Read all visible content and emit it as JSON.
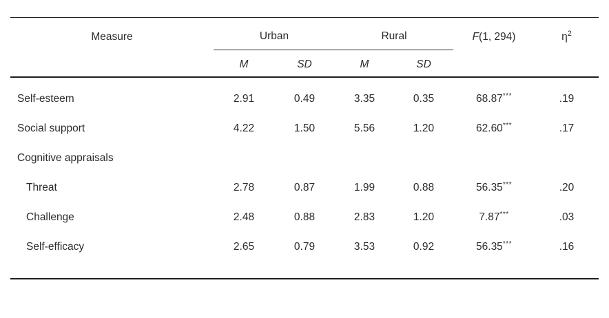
{
  "colors": {
    "text": "#2b2b2b",
    "rule": "#1f1f1f",
    "background": "#ffffff"
  },
  "table": {
    "header": {
      "measure": "Measure",
      "urban": "Urban",
      "rural": "Rural",
      "f_italic": "F",
      "f_rest": "(1, 294)",
      "eta": "η",
      "eta_sup": "2",
      "m": "M",
      "sd": "SD"
    },
    "rows": [
      {
        "label": "Self-esteem",
        "indent": false,
        "urban_m": "2.91",
        "urban_sd": "0.49",
        "rural_m": "3.35",
        "rural_sd": "0.35",
        "f": "68.87",
        "f_stars": "***",
        "eta": ".19"
      },
      {
        "label": "Social support",
        "indent": false,
        "urban_m": "4.22",
        "urban_sd": "1.50",
        "rural_m": "5.56",
        "rural_sd": "1.20",
        "f": "62.60",
        "f_stars": "***",
        "eta": ".17"
      },
      {
        "label": "Cognitive appraisals",
        "indent": false,
        "urban_m": "",
        "urban_sd": "",
        "rural_m": "",
        "rural_sd": "",
        "f": "",
        "f_stars": "",
        "eta": ""
      },
      {
        "label": "Threat",
        "indent": true,
        "urban_m": "2.78",
        "urban_sd": "0.87",
        "rural_m": "1.99",
        "rural_sd": "0.88",
        "f": "56.35",
        "f_stars": "***",
        "eta": ".20"
      },
      {
        "label": "Challenge",
        "indent": true,
        "urban_m": "2.48",
        "urban_sd": "0.88",
        "rural_m": "2.83",
        "rural_sd": "1.20",
        "f": "7.87",
        "f_stars": "***",
        "eta": ".03"
      },
      {
        "label": "Self-efficacy",
        "indent": true,
        "urban_m": "2.65",
        "urban_sd": "0.79",
        "rural_m": "3.53",
        "rural_sd": "0.92",
        "f": "56.35",
        "f_stars": "***",
        "eta": ".16"
      }
    ]
  }
}
